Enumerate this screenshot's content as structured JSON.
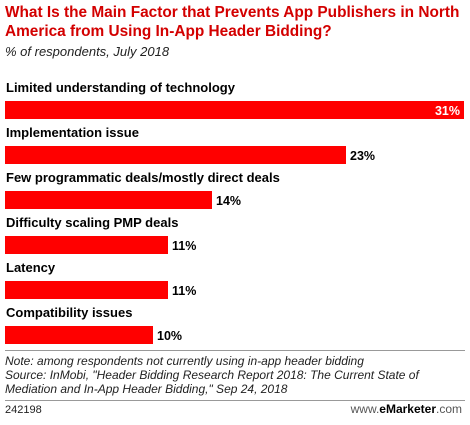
{
  "header": {
    "title": "What Is the Main Factor that Prevents App Publishers in North America from Using In-App Header Bidding?",
    "subtitle": "% of respondents, July 2018"
  },
  "chart_data": {
    "type": "bar",
    "orientation": "horizontal",
    "categories": [
      "Limited understanding of technology",
      "Implementation issue",
      "Few programmatic deals/mostly direct deals",
      "Difficulty scaling PMP deals",
      "Latency",
      "Compatibility issues"
    ],
    "values": [
      31,
      23,
      14,
      11,
      11,
      10
    ],
    "value_labels": [
      "31%",
      "23%",
      "14%",
      "11%",
      "11%",
      "10%"
    ],
    "xlim": [
      0,
      31
    ],
    "grid": false,
    "bar_color": "#ff0000"
  },
  "footer": {
    "note": "Note: among respondents not currently using in-app header bidding",
    "source": "Source: InMobi, \"Header Bidding Research Report 2018: The Current State of Mediation and In-App Header Bidding,\" Sep 24, 2018",
    "chart_id": "242198",
    "brand_prefix": "www.",
    "brand_name": "eMarketer",
    "brand_suffix": ".com"
  }
}
